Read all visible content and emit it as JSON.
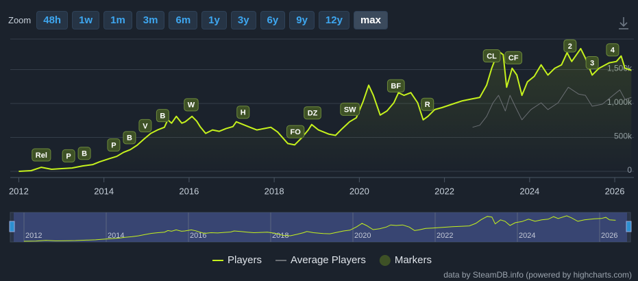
{
  "chart_data": {
    "type": "line",
    "zoom": {
      "label": "Zoom",
      "options": [
        "48h",
        "1w",
        "1m",
        "3m",
        "6m",
        "1y",
        "3y",
        "6y",
        "9y",
        "12y",
        "max"
      ],
      "selected": 10
    },
    "xlim": [
      2011.8,
      2026.45
    ],
    "xticks": [
      2012,
      2014,
      2016,
      2018,
      2020,
      2022,
      2024,
      2026
    ],
    "ylim": [
      0,
      1950000
    ],
    "yticks": [
      {
        "value": 0,
        "label": "0"
      },
      {
        "value": 500000,
        "label": "500k"
      },
      {
        "value": 1000000,
        "label": "1,000k"
      },
      {
        "value": 1500000,
        "label": "1,500k"
      }
    ],
    "grid": true,
    "series": [
      {
        "name": "Players",
        "color": "#c6f21d",
        "x": [
          2012.0,
          2012.29,
          2012.53,
          2012.77,
          2013.01,
          2013.25,
          2013.5,
          2013.74,
          2013.9,
          2014.14,
          2014.3,
          2014.46,
          2014.62,
          2014.78,
          2014.94,
          2015.1,
          2015.26,
          2015.42,
          2015.5,
          2015.59,
          2015.7,
          2015.83,
          2015.91,
          2016.07,
          2016.18,
          2016.26,
          2016.39,
          2016.55,
          2016.71,
          2016.87,
          2017.03,
          2017.11,
          2017.27,
          2017.43,
          2017.59,
          2017.76,
          2017.92,
          2018.08,
          2018.32,
          2018.48,
          2018.64,
          2018.8,
          2018.88,
          2019.04,
          2019.28,
          2019.44,
          2019.6,
          2019.77,
          2019.93,
          2020.09,
          2020.22,
          2020.33,
          2020.49,
          2020.65,
          2020.81,
          2020.92,
          2021.05,
          2021.21,
          2021.37,
          2021.5,
          2021.61,
          2021.77,
          2021.94,
          2022.18,
          2022.42,
          2022.66,
          2022.83,
          2022.99,
          2023.11,
          2023.17,
          2023.27,
          2023.38,
          2023.46,
          2023.59,
          2023.7,
          2023.82,
          2023.95,
          2024.11,
          2024.27,
          2024.43,
          2024.59,
          2024.75,
          2024.88,
          2024.99,
          2025.2,
          2025.31,
          2025.47,
          2025.63,
          2025.87,
          2026.04,
          2026.15,
          2026.24,
          2026.39
        ],
        "values": [
          0,
          10000,
          60000,
          30000,
          40000,
          50000,
          80000,
          100000,
          140000,
          190000,
          220000,
          280000,
          320000,
          385000,
          475000,
          560000,
          610000,
          650000,
          760000,
          710000,
          810000,
          710000,
          730000,
          810000,
          740000,
          660000,
          560000,
          610000,
          590000,
          630000,
          660000,
          730000,
          690000,
          650000,
          610000,
          630000,
          650000,
          580000,
          410000,
          390000,
          490000,
          610000,
          690000,
          610000,
          550000,
          530000,
          630000,
          730000,
          790000,
          1030000,
          1270000,
          1120000,
          830000,
          890000,
          1010000,
          1160000,
          1120000,
          1160000,
          1010000,
          760000,
          810000,
          910000,
          940000,
          990000,
          1040000,
          1070000,
          1090000,
          1270000,
          1520000,
          1620000,
          1770000,
          1720000,
          1240000,
          1520000,
          1420000,
          1120000,
          1320000,
          1400000,
          1570000,
          1420000,
          1520000,
          1570000,
          1750000,
          1620000,
          1810000,
          1670000,
          1420000,
          1520000,
          1600000,
          1620000,
          1700000,
          1520000,
          1490000
        ]
      },
      {
        "name": "Average Players",
        "color": "#6b6f74",
        "x": [
          2022.66,
          2022.83,
          2022.99,
          2023.14,
          2023.27,
          2023.43,
          2023.54,
          2023.66,
          2023.82,
          2024.03,
          2024.27,
          2024.43,
          2024.67,
          2024.91,
          2025.15,
          2025.31,
          2025.47,
          2025.71,
          2025.96,
          2026.12,
          2026.24,
          2026.39
        ],
        "values": [
          650000,
          680000,
          810000,
          1010000,
          1120000,
          890000,
          1120000,
          960000,
          760000,
          910000,
          1010000,
          910000,
          1010000,
          1240000,
          1140000,
          1120000,
          960000,
          990000,
          1120000,
          1200000,
          1060000,
          1090000
        ]
      }
    ],
    "markers_name": "Markers",
    "markers": [
      {
        "label": "Rel",
        "x": 2012.53
      },
      {
        "label": "P",
        "x": 2013.17
      },
      {
        "label": "B",
        "x": 2013.54
      },
      {
        "label": "P",
        "x": 2014.23
      },
      {
        "label": "B",
        "x": 2014.6
      },
      {
        "label": "V",
        "x": 2014.97
      },
      {
        "label": "B",
        "x": 2015.38
      },
      {
        "label": "W",
        "x": 2016.05
      },
      {
        "label": "H",
        "x": 2017.27
      },
      {
        "label": "FO",
        "x": 2018.5
      },
      {
        "label": "DZ",
        "x": 2018.9
      },
      {
        "label": "SW",
        "x": 2019.78
      },
      {
        "label": "BF",
        "x": 2020.86
      },
      {
        "label": "R",
        "x": 2021.6
      },
      {
        "label": "CL",
        "x": 2023.11
      },
      {
        "label": "CF",
        "x": 2023.62
      },
      {
        "label": "2",
        "x": 2024.95
      },
      {
        "label": "3",
        "x": 2025.47
      },
      {
        "label": "4",
        "x": 2025.95
      }
    ],
    "credits": "data by SteamDB.info (powered by highcharts.com)"
  }
}
